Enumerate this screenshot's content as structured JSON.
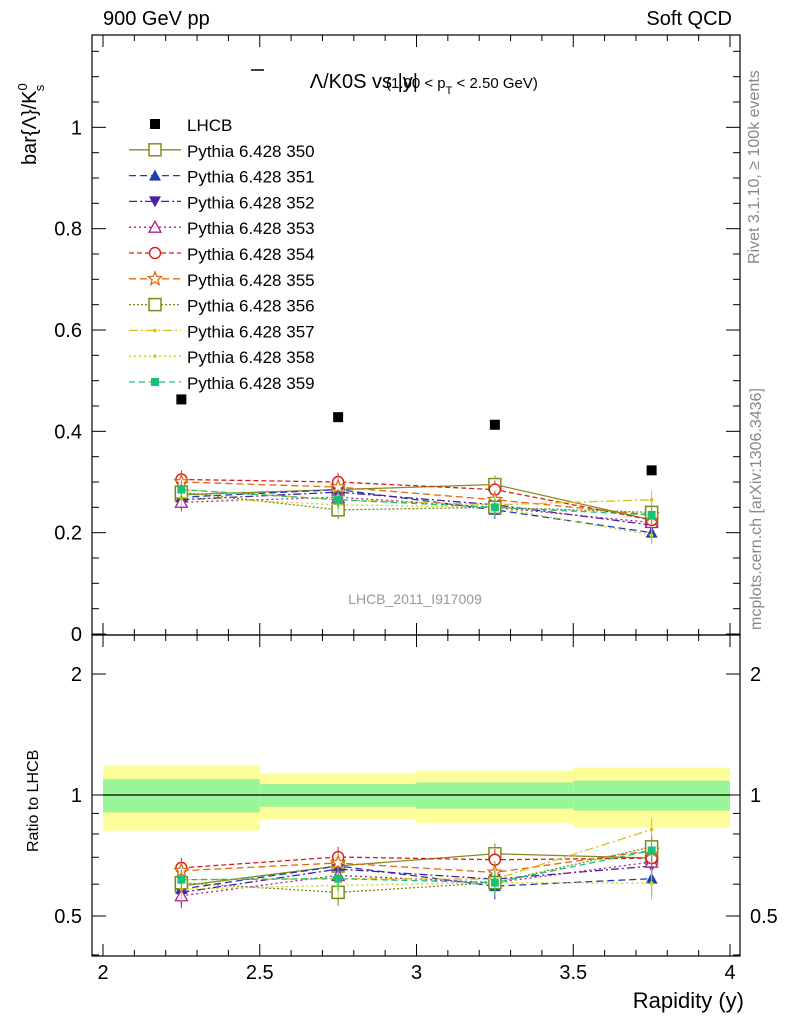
{
  "header": {
    "left": "900 GeV pp",
    "right": "Soft QCD"
  },
  "side": {
    "rivet": "Rivet 3.1.10, ≥ 100k events",
    "mcplots": "mcplots.cern.ch [arXiv:1306.3436]"
  },
  "chart_data": {
    "type": "scatter",
    "title_main": "Λ/K0S vs |y|",
    "title_bar": "Λ",
    "title_rest": "/K0S vs |y|",
    "title_sub": "(1.00 < p",
    "title_sub_t": "T",
    "title_sub_end": " < 2.50 GeV)",
    "ylabel": "bar{Λ}/K",
    "ylabel_sup": "0",
    "ylabel_sub": "s",
    "ratio_ylabel": "Ratio to LHCB",
    "xlabel": "Rapidity (y)",
    "watermark": "LHCB_2011_I917009",
    "xlim": [
      2,
      4
    ],
    "ylim_main": [
      0,
      1.2
    ],
    "ylim_ratio": [
      0.34,
      2.3
    ],
    "xticks": [
      "2",
      "2.5",
      "3",
      "3.5",
      "4"
    ],
    "yticks_main": [
      "0",
      "0.2",
      "0.4",
      "0.6",
      "0.8",
      "1"
    ],
    "yticks_ratio": [
      "0.5",
      "1",
      "2"
    ],
    "bins": [
      [
        2,
        2.5
      ],
      [
        2.5,
        3
      ],
      [
        3,
        3.5
      ],
      [
        3.5,
        4
      ]
    ],
    "x": [
      2.25,
      2.75,
      3.25,
      3.75
    ],
    "data": {
      "name": "LHCB",
      "values": [
        0.463,
        0.428,
        0.413,
        0.323
      ],
      "band_inner": [
        0.095,
        0.065,
        0.075,
        0.085
      ],
      "band_outer": [
        0.185,
        0.13,
        0.15,
        0.17
      ]
    },
    "series": [
      {
        "name": "Pythia 6.428 350",
        "color": "#8a8a1e",
        "marker": "open-square",
        "dash": "",
        "values": [
          0.275,
          0.285,
          0.295,
          0.225
        ]
      },
      {
        "name": "Pythia 6.428 351",
        "color": "#1a3fb0",
        "marker": "filled-triangle-up",
        "dash": "7,4",
        "values": [
          0.27,
          0.285,
          0.245,
          0.2
        ]
      },
      {
        "name": "Pythia 6.428 352",
        "color": "#4b1fa8",
        "marker": "filled-triangle-down",
        "dash": "8,3,2,3",
        "values": [
          0.265,
          0.28,
          0.255,
          0.215
        ]
      },
      {
        "name": "Pythia 6.428 353",
        "color": "#b01c8c",
        "marker": "open-triangle-up",
        "dash": "2,3",
        "values": [
          0.26,
          0.27,
          0.25,
          0.22
        ]
      },
      {
        "name": "Pythia 6.428 354",
        "color": "#d81c1c",
        "marker": "open-circle",
        "dash": "5,3",
        "values": [
          0.305,
          0.3,
          0.285,
          0.225
        ]
      },
      {
        "name": "Pythia 6.428 355",
        "color": "#e06a10",
        "marker": "open-star",
        "dash": "7,4",
        "values": [
          0.3,
          0.29,
          0.265,
          0.235
        ]
      },
      {
        "name": "Pythia 6.428 356",
        "color": "#7a8a10",
        "marker": "open-square",
        "dash": "2,2",
        "values": [
          0.28,
          0.245,
          0.25,
          0.24
        ]
      },
      {
        "name": "Pythia 6.428 357",
        "color": "#d8c21a",
        "marker": "dot",
        "dash": "9,3,2,3",
        "values": [
          0.285,
          0.265,
          0.255,
          0.265
        ]
      },
      {
        "name": "Pythia 6.428 358",
        "color": "#c8d418",
        "marker": "dot",
        "dash": "2,3",
        "values": [
          0.27,
          0.255,
          0.25,
          0.195
        ]
      },
      {
        "name": "Pythia 6.428 359",
        "color": "#18c07a",
        "marker": "filled-square",
        "dash": "6,4",
        "values": [
          0.285,
          0.265,
          0.25,
          0.235
        ]
      }
    ],
    "legend_position": "top-left"
  }
}
